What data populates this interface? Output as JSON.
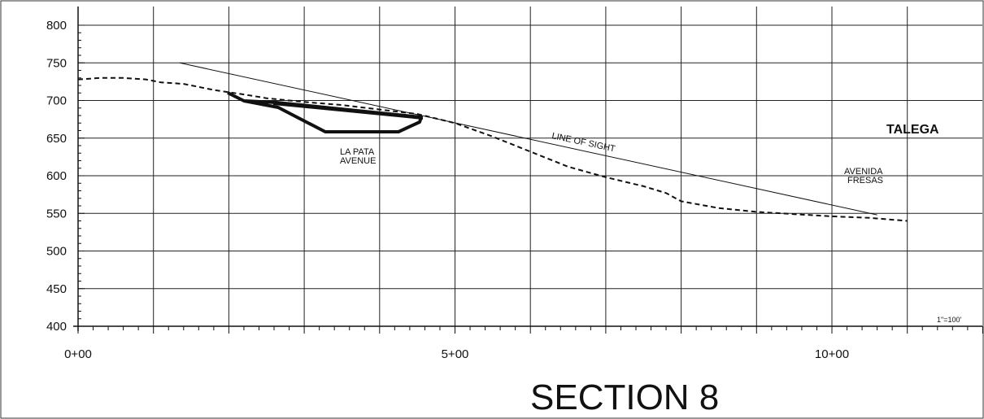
{
  "chart_data": {
    "type": "line",
    "title": "SECTION 8",
    "xlabel": "",
    "ylabel": "",
    "x_tick_labels": [
      "0+00",
      "5+00",
      "10+00"
    ],
    "x_ticks": [
      0,
      500,
      1000
    ],
    "y_ticks": [
      400,
      450,
      500,
      550,
      600,
      650,
      700,
      750,
      800
    ],
    "xlim": [
      0,
      1200
    ],
    "ylim": [
      400,
      800
    ],
    "grid": true,
    "scale_note": "1\"=100'",
    "series": [
      {
        "name": "",
        "style": "dashed",
        "x": [
          0,
          30,
          60,
          90,
          110,
          140,
          180,
          220,
          250,
          280,
          300,
          350,
          400,
          450,
          500,
          550,
          600,
          650,
          700,
          750,
          780,
          800,
          850,
          900,
          950,
          1000,
          1050,
          1100
        ],
        "y": [
          728,
          730,
          730,
          728,
          724,
          722,
          714,
          708,
          703,
          700,
          698,
          694,
          688,
          682,
          670,
          652,
          632,
          612,
          598,
          586,
          577,
          566,
          557,
          552,
          549,
          546,
          544,
          540
        ]
      },
      {
        "name": "LINE OF SIGHT",
        "style": "solid",
        "x": [
          135,
          1060
        ],
        "y": [
          750,
          548
        ]
      }
    ],
    "annotations": [
      {
        "text": "LA PATA",
        "x": 345,
        "y": 632
      },
      {
        "text": "AVENUE",
        "x": 345,
        "y": 620
      },
      {
        "text": "LINE OF SIGHT",
        "x": 670,
        "y": 645
      },
      {
        "text": "AVENIDA",
        "x": 1025,
        "y": 603
      },
      {
        "text": "FRESAS",
        "x": 1025,
        "y": 591
      },
      {
        "text": "TALEGA",
        "x": 1150,
        "y": 660
      }
    ]
  }
}
